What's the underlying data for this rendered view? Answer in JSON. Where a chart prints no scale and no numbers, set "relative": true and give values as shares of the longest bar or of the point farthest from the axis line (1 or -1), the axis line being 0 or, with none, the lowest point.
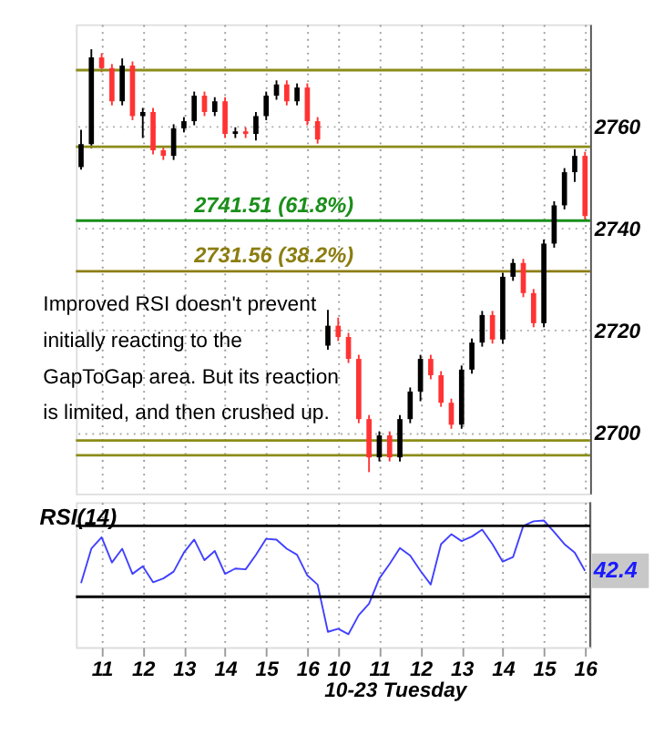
{
  "chart_data": [
    {
      "type": "candlestick",
      "grid": true,
      "tick_labels": "y",
      "categories": [
        null,
        null,
        "11",
        null,
        null,
        null,
        "12",
        null,
        null,
        null,
        "13",
        null,
        null,
        null,
        "14",
        null,
        null,
        null,
        "15",
        null,
        null,
        null,
        "16",
        null,
        null,
        "10",
        null,
        null,
        null,
        "11",
        null,
        null,
        null,
        "12",
        null,
        null,
        null,
        "13",
        null,
        null,
        null,
        "14",
        null,
        null,
        null,
        "15",
        null,
        null,
        null,
        "16"
      ],
      "ylim": [
        2688,
        2780
      ],
      "yticks": [
        2700,
        2720,
        2740,
        2760
      ],
      "ohlc": [
        [
          2752.0,
          2759.3,
          2751.5,
          2756.5
        ],
        [
          2756.5,
          2775.1,
          2755.7,
          2773.5
        ],
        [
          2773.5,
          2774.3,
          2770.6,
          2771.4
        ],
        [
          2771.4,
          2772.2,
          2764.1,
          2764.9
        ],
        [
          2764.9,
          2773.3,
          2764.1,
          2771.9
        ],
        [
          2771.9,
          2772.7,
          2761.2,
          2762.0
        ],
        [
          2762.0,
          2763.6,
          2757.7,
          2762.8
        ],
        [
          2762.8,
          2763.6,
          2754.5,
          2755.3
        ],
        [
          2755.3,
          2756.1,
          2753.4,
          2754.2
        ],
        [
          2754.2,
          2760.4,
          2753.4,
          2759.6
        ],
        [
          2759.6,
          2761.8,
          2758.8,
          2761.0
        ],
        [
          2761.0,
          2766.8,
          2760.2,
          2766.0
        ],
        [
          2766.0,
          2766.8,
          2762.0,
          2762.8
        ],
        [
          2762.8,
          2765.7,
          2762.0,
          2764.9
        ],
        [
          2764.9,
          2765.7,
          2757.7,
          2758.5
        ],
        [
          2758.5,
          2759.8,
          2757.7,
          2759.0
        ],
        [
          2759.0,
          2759.8,
          2757.7,
          2758.5
        ],
        [
          2758.5,
          2762.8,
          2757.2,
          2762.0
        ],
        [
          2762.0,
          2766.8,
          2761.2,
          2766.0
        ],
        [
          2766.0,
          2769.0,
          2765.2,
          2768.2
        ],
        [
          2768.2,
          2769.0,
          2764.1,
          2764.9
        ],
        [
          2764.9,
          2768.4,
          2764.1,
          2767.6
        ],
        [
          2767.6,
          2768.4,
          2760.2,
          2761.0
        ],
        [
          2761.0,
          2761.8,
          2756.6,
          2757.4
        ],
        [
          2717.0,
          2724.0,
          2716.2,
          2720.9
        ],
        [
          2720.9,
          2722.5,
          2717.9,
          2718.7
        ],
        [
          2718.7,
          2719.5,
          2713.6,
          2714.4
        ],
        [
          2714.4,
          2715.2,
          2701.8,
          2702.6
        ],
        [
          2702.6,
          2703.4,
          2692.2,
          2695.1
        ],
        [
          2695.1,
          2700.2,
          2694.3,
          2699.4
        ],
        [
          2699.4,
          2700.2,
          2694.3,
          2695.1
        ],
        [
          2695.1,
          2703.4,
          2694.3,
          2702.6
        ],
        [
          2702.6,
          2708.8,
          2701.8,
          2708.0
        ],
        [
          2708.0,
          2715.2,
          2706.1,
          2714.4
        ],
        [
          2714.4,
          2715.2,
          2710.4,
          2711.2
        ],
        [
          2711.2,
          2712.0,
          2705.0,
          2705.8
        ],
        [
          2705.8,
          2706.6,
          2700.7,
          2701.5
        ],
        [
          2701.5,
          2713.1,
          2700.7,
          2712.3
        ],
        [
          2712.3,
          2718.4,
          2711.5,
          2717.6
        ],
        [
          2717.6,
          2723.8,
          2716.8,
          2723.0
        ],
        [
          2723.0,
          2723.8,
          2717.4,
          2718.2
        ],
        [
          2718.2,
          2731.3,
          2717.4,
          2730.5
        ],
        [
          2730.5,
          2734.0,
          2729.7,
          2733.2
        ],
        [
          2733.2,
          2734.0,
          2726.5,
          2727.3
        ],
        [
          2727.3,
          2728.1,
          2720.6,
          2721.4
        ],
        [
          2721.4,
          2737.8,
          2720.6,
          2737.0
        ],
        [
          2737.0,
          2745.3,
          2736.2,
          2744.5
        ],
        [
          2744.5,
          2751.8,
          2743.7,
          2751.0
        ],
        [
          2751.0,
          2755.5,
          2749.1,
          2754.2
        ],
        [
          2754.2,
          2755.0,
          2741.6,
          2742.4
        ]
      ],
      "colors": [
        "#000000",
        "#000000",
        "#ff3333",
        "#ff3333",
        "#000000",
        "#ff3333",
        "#000000",
        "#ff3333",
        "#ff3333",
        "#000000",
        "#000000",
        "#000000",
        "#ff3333",
        "#000000",
        "#ff3333",
        "#000000",
        "#ff3333",
        "#000000",
        "#000000",
        "#000000",
        "#ff3333",
        "#000000",
        "#ff3333",
        "#ff3333",
        "#000000",
        "#ff3333",
        "#ff3333",
        "#ff3333",
        "#ff3333",
        "#000000",
        "#ff3333",
        "#000000",
        "#000000",
        "#000000",
        "#ff3333",
        "#ff3333",
        "#ff3333",
        "#000000",
        "#000000",
        "#000000",
        "#ff3333",
        "#000000",
        "#000000",
        "#ff3333",
        "#ff3333",
        "#000000",
        "#000000",
        "#000000",
        "#000000",
        "#ff3333"
      ],
      "ref_lines": [
        {
          "axis": "y",
          "value": 2771,
          "color": "#8c8c1a"
        },
        {
          "axis": "y",
          "value": 2756,
          "color": "#8c8c1a"
        },
        {
          "axis": "y",
          "value": 2741.51,
          "label": "2741.51 (61.8%)",
          "color": "#1a8f1a"
        },
        {
          "axis": "y",
          "value": 2731.56,
          "label": "2731.56 (38.2%)",
          "color": "#8c7d10"
        },
        {
          "axis": "y",
          "value": 2698.4,
          "color": "#8c8c1a"
        },
        {
          "axis": "y",
          "value": 2695.5,
          "color": "#8c8c1a"
        }
      ],
      "annotations": [
        "Improved RSI doesn't prevent\ninitially reacting to the\nGapToGap area. But its reaction\nis limited, and then crushed up."
      ]
    },
    {
      "type": "line",
      "relative": true,
      "grid": "x",
      "marker": "none",
      "line_style": "solid",
      "categories": [
        null,
        null,
        "11",
        null,
        null,
        null,
        "12",
        null,
        null,
        null,
        "13",
        null,
        null,
        null,
        "14",
        null,
        null,
        null,
        "15",
        null,
        null,
        null,
        "16",
        null,
        null,
        "10",
        null,
        null,
        null,
        "11",
        null,
        null,
        null,
        "12",
        null,
        null,
        null,
        "13",
        null,
        null,
        null,
        "14",
        null,
        null,
        null,
        "15",
        null,
        null,
        null,
        "16"
      ],
      "xlabel": "10-23 Tuesday",
      "series": [
        {
          "color": "#4040ff",
          "values": [
            0.18,
            0.63,
            0.78,
            0.45,
            0.63,
            0.3,
            0.4,
            0.19,
            0.24,
            0.33,
            0.58,
            0.75,
            0.48,
            0.6,
            0.3,
            0.37,
            0.36,
            0.55,
            0.76,
            0.75,
            0.63,
            0.55,
            0.28,
            0.16,
            -0.46,
            -0.42,
            -0.49,
            -0.24,
            -0.09,
            0.24,
            0.43,
            0.64,
            0.54,
            0.34,
            0.16,
            0.69,
            0.82,
            0.73,
            0.79,
            0.88,
            0.69,
            0.46,
            0.52,
            0.93,
            0.99,
            1.0,
            0.85,
            0.69,
            0.58,
            0.34
          ]
        }
      ],
      "ref_lines": [
        {
          "axis": "y",
          "value": 0.93,
          "color": "#000000"
        },
        {
          "axis": "y",
          "value": 0,
          "color": "#000000"
        }
      ],
      "annotations": [
        "RSI(14)",
        "42.4"
      ]
    }
  ]
}
